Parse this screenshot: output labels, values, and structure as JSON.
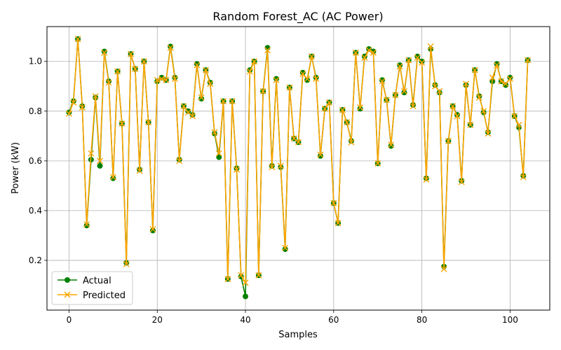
{
  "chart_data": {
    "type": "line",
    "title": "Random Forest_AC (AC Power)",
    "xlabel": "Samples",
    "ylabel": "Power (kW)",
    "xlim": [
      -5,
      109
    ],
    "ylim": [
      0.0,
      1.14
    ],
    "xticks": [
      0,
      20,
      40,
      60,
      80,
      100
    ],
    "yticks": [
      0.2,
      0.4,
      0.6,
      0.8,
      1.0
    ],
    "ytick_labels": [
      "0.2",
      "0.4",
      "0.6",
      "0.8",
      "1.0"
    ],
    "grid": true,
    "legend_position": "lower-left",
    "x": [
      0,
      1,
      2,
      3,
      4,
      5,
      6,
      7,
      8,
      9,
      10,
      11,
      12,
      13,
      14,
      15,
      16,
      17,
      18,
      19,
      20,
      21,
      22,
      23,
      24,
      25,
      26,
      27,
      28,
      29,
      30,
      31,
      32,
      33,
      34,
      35,
      36,
      37,
      38,
      39,
      40,
      41,
      42,
      43,
      44,
      45,
      46,
      47,
      48,
      49,
      50,
      51,
      52,
      53,
      54,
      55,
      56,
      57,
      58,
      59,
      60,
      61,
      62,
      63,
      64,
      65,
      66,
      67,
      68,
      69,
      70,
      71,
      72,
      73,
      74,
      75,
      76,
      77,
      78,
      79,
      80,
      81,
      82,
      83,
      84,
      85,
      86,
      87,
      88,
      89,
      90,
      91,
      92,
      93,
      94,
      95,
      96,
      97,
      98,
      99,
      100,
      101,
      102,
      103,
      104
    ],
    "series": [
      {
        "name": "Actual",
        "color": "#008000",
        "marker": "circle",
        "values": [
          0.795,
          0.84,
          1.09,
          0.82,
          0.34,
          0.605,
          0.855,
          0.58,
          1.04,
          0.92,
          0.53,
          0.96,
          0.75,
          0.19,
          1.03,
          0.97,
          0.565,
          1.0,
          0.755,
          0.32,
          0.92,
          0.935,
          0.925,
          1.06,
          0.935,
          0.605,
          0.82,
          0.8,
          0.785,
          0.99,
          0.85,
          0.965,
          0.915,
          0.71,
          0.615,
          0.84,
          0.125,
          0.84,
          0.57,
          0.135,
          0.055,
          0.965,
          1.0,
          0.14,
          0.88,
          1.055,
          0.58,
          0.93,
          0.575,
          0.245,
          0.895,
          0.69,
          0.675,
          0.955,
          0.925,
          1.02,
          0.935,
          0.62,
          0.81,
          0.835,
          0.43,
          0.35,
          0.805,
          0.755,
          0.68,
          1.035,
          0.81,
          1.02,
          1.05,
          1.04,
          0.59,
          0.925,
          0.845,
          0.66,
          0.865,
          0.985,
          0.875,
          1.005,
          0.825,
          1.02,
          1.0,
          0.53,
          1.05,
          0.905,
          0.875,
          0.175,
          0.68,
          0.82,
          0.785,
          0.52,
          0.905,
          0.745,
          0.965,
          0.86,
          0.795,
          0.715,
          0.92,
          0.99,
          0.92,
          0.905,
          0.935,
          0.78,
          0.735,
          0.54,
          1.005
        ]
      },
      {
        "name": "Predicted",
        "color": "#FFA500",
        "marker": "x",
        "values": [
          0.79,
          0.835,
          1.09,
          0.815,
          0.345,
          0.63,
          0.86,
          0.6,
          1.035,
          0.915,
          0.535,
          0.96,
          0.75,
          0.185,
          1.03,
          0.97,
          0.56,
          1.0,
          0.755,
          0.325,
          0.925,
          0.93,
          0.925,
          1.055,
          0.93,
          0.6,
          0.82,
          0.795,
          0.78,
          0.985,
          0.855,
          0.965,
          0.91,
          0.715,
          0.63,
          0.84,
          0.125,
          0.84,
          0.565,
          0.14,
          0.11,
          0.96,
          1.0,
          0.14,
          0.88,
          1.045,
          0.575,
          0.925,
          0.58,
          0.25,
          0.895,
          0.69,
          0.675,
          0.95,
          0.93,
          1.02,
          0.93,
          0.625,
          0.81,
          0.835,
          0.43,
          0.35,
          0.805,
          0.755,
          0.675,
          1.035,
          0.815,
          1.015,
          1.045,
          1.035,
          0.59,
          0.92,
          0.845,
          0.665,
          0.865,
          0.98,
          0.88,
          1.005,
          0.82,
          1.015,
          0.995,
          0.525,
          1.06,
          0.9,
          0.88,
          0.165,
          0.68,
          0.82,
          0.78,
          0.515,
          0.91,
          0.745,
          0.965,
          0.855,
          0.8,
          0.71,
          0.935,
          0.985,
          0.92,
          0.91,
          0.93,
          0.78,
          0.745,
          0.535,
          1.005
        ]
      }
    ]
  }
}
